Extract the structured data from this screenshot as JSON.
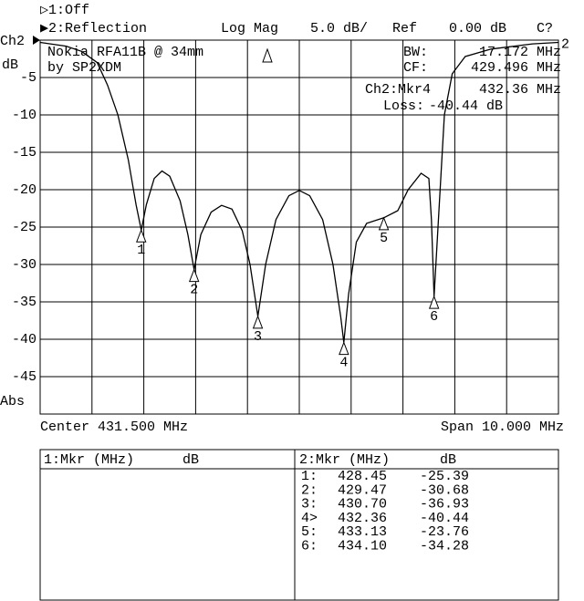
{
  "header": {
    "channel1": "▷1:Off",
    "channel2": "▶2:Reflection",
    "format": "Log Mag",
    "scale": "5.0 dB/",
    "ref_label": "Ref",
    "ref_value": "0.00 dB",
    "status": "C?"
  },
  "chart_data": {
    "type": "line",
    "x": [
      426.5,
      427.0,
      427.3,
      427.6,
      427.8,
      428.0,
      428.2,
      428.35,
      428.45,
      428.55,
      428.7,
      428.85,
      429.0,
      429.2,
      429.35,
      429.47,
      429.6,
      429.8,
      430.0,
      430.2,
      430.4,
      430.55,
      430.7,
      430.85,
      431.05,
      431.3,
      431.5,
      431.7,
      431.95,
      432.15,
      432.3,
      432.36,
      432.45,
      432.6,
      432.8,
      433.13,
      433.4,
      433.6,
      433.85,
      434.0,
      434.05,
      434.1,
      434.2,
      434.3,
      434.45,
      434.7,
      435.2,
      436.0,
      436.5
    ],
    "series": [
      {
        "name": "2",
        "color": "#000000",
        "values": [
          -0.3,
          -0.8,
          -1.5,
          -3,
          -6,
          -10,
          -16,
          -22,
          -25.39,
          -22,
          -18.5,
          -17.5,
          -18.2,
          -21.5,
          -26,
          -30.68,
          -26,
          -23,
          -22.1,
          -22.6,
          -25.5,
          -30,
          -36.93,
          -30,
          -24,
          -20.8,
          -20.1,
          -20.8,
          -24,
          -30,
          -37,
          -40.44,
          -34,
          -27,
          -24.5,
          -23.76,
          -22.8,
          -20,
          -17.8,
          -18.5,
          -24,
          -34.28,
          -22,
          -10,
          -4.5,
          -2.2,
          -1.2,
          -0.5,
          -0.3
        ]
      }
    ],
    "xlim": [
      426.5,
      436.5
    ],
    "xticks": [
      426.5,
      427.5,
      428.5,
      429.5,
      430.5,
      431.5,
      432.5,
      433.5,
      434.5,
      435.5,
      436.5
    ],
    "ylim": [
      -50,
      0
    ],
    "yticks": [
      -5,
      -10,
      -15,
      -20,
      -25,
      -30,
      -35,
      -40,
      -45
    ],
    "grid": true,
    "y_top_label": "Ch2",
    "y_unit": "dB",
    "y_bottom_label": "Abs",
    "x_center_label": "Center 431.500 MHz",
    "x_span_label": "Span 10.000 MHz",
    "markers": {
      "ids": [
        "1",
        "2",
        "3",
        "4",
        "5",
        "6"
      ],
      "x": [
        428.45,
        429.47,
        430.7,
        432.36,
        433.13,
        434.1
      ],
      "y": [
        -25.39,
        -30.68,
        -36.93,
        -40.44,
        -23.76,
        -34.28
      ]
    },
    "annotations": {
      "title1": "Nokia RFA11B @ 34mm",
      "title2": "by SP2XDM",
      "bw_label": "BW:",
      "bw_value": "17.172 MHz",
      "cf_label": "CF:",
      "cf_value": "429.496 MHz",
      "mkr_label": "Ch2:Mkr4",
      "mkr_value": "432.36 MHz",
      "loss_label": "Loss:",
      "loss_value": "-40.44 dB"
    }
  },
  "table": {
    "left_header": "1:Mkr (MHz)",
    "left_unit": "dB",
    "right_header": "2:Mkr (MHz)",
    "right_unit": "dB",
    "row_ids": [
      "1:",
      "2:",
      "3:",
      "4>",
      "5:",
      "6:"
    ],
    "freq_labels": [
      "428.45",
      "429.47",
      "430.70",
      "432.36",
      "433.13",
      "434.10"
    ],
    "db_labels": [
      "-25.39",
      "-30.68",
      "-36.93",
      "-40.44",
      "-23.76",
      "-34.28"
    ]
  }
}
